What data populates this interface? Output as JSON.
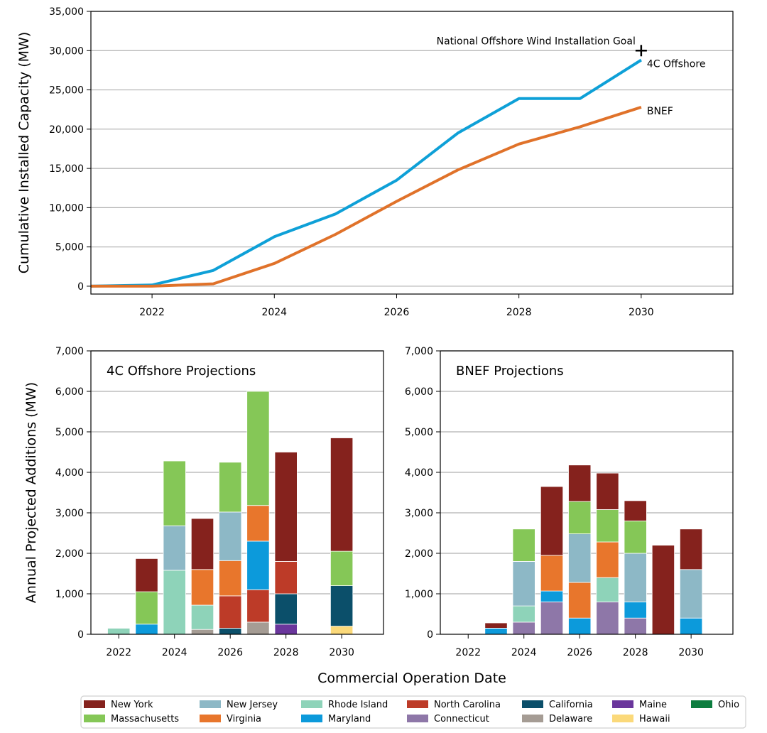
{
  "colors": {
    "line_4c": "#0EA0D7",
    "line_bnef": "#E0722A",
    "grid": "#B0B0B0",
    "axis": "#000000",
    "bar_edge": "#FFFFFF",
    "states": {
      "New York": "#85221D",
      "Massachusetts": "#85C757",
      "New Jersey": "#8DB8C6",
      "Virginia": "#E8762C",
      "Rhode Island": "#8ED3B9",
      "Maryland": "#0C9ADB",
      "North Carolina": "#BD3B28",
      "Connecticut": "#8E77A8",
      "California": "#0B4F6A",
      "Delaware": "#A59C94",
      "Maine": "#6A369C",
      "Hawaii": "#FBD97A",
      "Ohio": "#0D7D3F"
    }
  },
  "shared": {
    "xlabel": "Commercial Operation Date"
  },
  "chart_data": [
    {
      "type": "line",
      "id": "cumulative",
      "ylabel": "Cumulative Installed Capacity (MW)",
      "xlim": [
        2021,
        2031.5
      ],
      "ylim": [
        -1000,
        35000
      ],
      "xticks": [
        2022,
        2024,
        2026,
        2028,
        2030
      ],
      "yticks": [
        0,
        5000,
        10000,
        15000,
        20000,
        25000,
        30000,
        35000
      ],
      "ytick_labels": [
        "0",
        "5,000",
        "10,000",
        "15,000",
        "20,000",
        "25,000",
        "30,000",
        "35,000"
      ],
      "grid": "horizontal",
      "x": [
        2021,
        2022,
        2023,
        2024,
        2025,
        2026,
        2027,
        2028,
        2029,
        2030
      ],
      "series": [
        {
          "name": "4C Offshore",
          "color_key": "line_4c",
          "values": [
            0,
            150,
            2000,
            6300,
            9200,
            13500,
            19500,
            23900,
            23900,
            28800
          ]
        },
        {
          "name": "BNEF",
          "color_key": "line_bnef",
          "values": [
            0,
            0,
            300,
            2900,
            6600,
            10800,
            14800,
            18100,
            20300,
            22800
          ]
        }
      ],
      "goal": {
        "label": "National Offshore Wind Installation Goal",
        "x": 2030,
        "y": 30000,
        "marker": "+"
      }
    },
    {
      "type": "bar",
      "id": "fourc",
      "title": "4C Offshore Projections",
      "ylabel": "Annual Projected Additions (MW)",
      "xlim": [
        2021,
        2031.5
      ],
      "ylim": [
        0,
        7000
      ],
      "xticks": [
        2022,
        2024,
        2026,
        2028,
        2030
      ],
      "yticks": [
        0,
        1000,
        2000,
        3000,
        4000,
        5000,
        6000,
        7000
      ],
      "ytick_labels": [
        "0",
        "1,000",
        "2,000",
        "3,000",
        "4,000",
        "5,000",
        "6,000",
        "7,000"
      ],
      "grid": "horizontal",
      "stacks": [
        {
          "year": 2022,
          "segments": [
            {
              "state": "Rhode Island",
              "value": 150
            }
          ]
        },
        {
          "year": 2023,
          "segments": [
            {
              "state": "Maryland",
              "value": 250
            },
            {
              "state": "Massachusetts",
              "value": 800
            },
            {
              "state": "New York",
              "value": 820
            }
          ]
        },
        {
          "year": 2024,
          "segments": [
            {
              "state": "Rhode Island",
              "value": 1580
            },
            {
              "state": "New Jersey",
              "value": 1100
            },
            {
              "state": "Massachusetts",
              "value": 1600
            }
          ]
        },
        {
          "year": 2025,
          "segments": [
            {
              "state": "Delaware",
              "value": 120
            },
            {
              "state": "Rhode Island",
              "value": 600
            },
            {
              "state": "Virginia",
              "value": 880
            },
            {
              "state": "New York",
              "value": 1260
            }
          ]
        },
        {
          "year": 2026,
          "segments": [
            {
              "state": "California",
              "value": 150
            },
            {
              "state": "North Carolina",
              "value": 800
            },
            {
              "state": "Virginia",
              "value": 870
            },
            {
              "state": "New Jersey",
              "value": 1200
            },
            {
              "state": "Massachusetts",
              "value": 1230
            }
          ]
        },
        {
          "year": 2027,
          "segments": [
            {
              "state": "Delaware",
              "value": 300
            },
            {
              "state": "North Carolina",
              "value": 800
            },
            {
              "state": "Maryland",
              "value": 1200
            },
            {
              "state": "Virginia",
              "value": 880
            },
            {
              "state": "Massachusetts",
              "value": 2820
            }
          ]
        },
        {
          "year": 2028,
          "segments": [
            {
              "state": "Maine",
              "value": 250
            },
            {
              "state": "California",
              "value": 750
            },
            {
              "state": "North Carolina",
              "value": 800
            },
            {
              "state": "New York",
              "value": 2700
            }
          ]
        },
        {
          "year": 2030,
          "segments": [
            {
              "state": "Hawaii",
              "value": 200
            },
            {
              "state": "California",
              "value": 1000
            },
            {
              "state": "Massachusetts",
              "value": 850
            },
            {
              "state": "New York",
              "value": 2800
            }
          ]
        }
      ]
    },
    {
      "type": "bar",
      "id": "bnef",
      "title": "BNEF Projections",
      "xlim": [
        2021,
        2031.5
      ],
      "ylim": [
        0,
        7000
      ],
      "xticks": [
        2022,
        2024,
        2026,
        2028,
        2030
      ],
      "yticks": [
        0,
        1000,
        2000,
        3000,
        4000,
        5000,
        6000,
        7000
      ],
      "ytick_labels": [
        "0",
        "1,000",
        "2,000",
        "3,000",
        "4,000",
        "5,000",
        "6,000",
        "7,000"
      ],
      "grid": "horizontal",
      "stacks": [
        {
          "year": 2023,
          "segments": [
            {
              "state": "Maryland",
              "value": 150
            },
            {
              "state": "New York",
              "value": 130
            }
          ]
        },
        {
          "year": 2024,
          "segments": [
            {
              "state": "Connecticut",
              "value": 300
            },
            {
              "state": "Rhode Island",
              "value": 400
            },
            {
              "state": "New Jersey",
              "value": 1100
            },
            {
              "state": "Massachusetts",
              "value": 800
            }
          ]
        },
        {
          "year": 2025,
          "segments": [
            {
              "state": "Connecticut",
              "value": 800
            },
            {
              "state": "Maryland",
              "value": 270
            },
            {
              "state": "Virginia",
              "value": 880
            },
            {
              "state": "New York",
              "value": 1700
            }
          ]
        },
        {
          "year": 2026,
          "segments": [
            {
              "state": "Maryland",
              "value": 400
            },
            {
              "state": "Virginia",
              "value": 880
            },
            {
              "state": "New Jersey",
              "value": 1200
            },
            {
              "state": "Massachusetts",
              "value": 800
            },
            {
              "state": "New York",
              "value": 900
            }
          ]
        },
        {
          "year": 2027,
          "segments": [
            {
              "state": "Connecticut",
              "value": 800
            },
            {
              "state": "Rhode Island",
              "value": 600
            },
            {
              "state": "Virginia",
              "value": 880
            },
            {
              "state": "Massachusetts",
              "value": 800
            },
            {
              "state": "New York",
              "value": 900
            }
          ]
        },
        {
          "year": 2028,
          "segments": [
            {
              "state": "Connecticut",
              "value": 400
            },
            {
              "state": "Maryland",
              "value": 400
            },
            {
              "state": "New Jersey",
              "value": 1200
            },
            {
              "state": "Massachusetts",
              "value": 800
            },
            {
              "state": "New York",
              "value": 500
            }
          ]
        },
        {
          "year": 2029,
          "segments": [
            {
              "state": "New York",
              "value": 2200
            }
          ]
        },
        {
          "year": 2030,
          "segments": [
            {
              "state": "Maryland",
              "value": 400
            },
            {
              "state": "New Jersey",
              "value": 1200
            },
            {
              "state": "New York",
              "value": 1000
            }
          ]
        }
      ]
    }
  ],
  "legend": {
    "entries": [
      "New York",
      "Massachusetts",
      "New Jersey",
      "Virginia",
      "Rhode Island",
      "Maryland",
      "North Carolina",
      "Connecticut",
      "California",
      "Delaware",
      "Maine",
      "Hawaii",
      "Ohio"
    ]
  }
}
